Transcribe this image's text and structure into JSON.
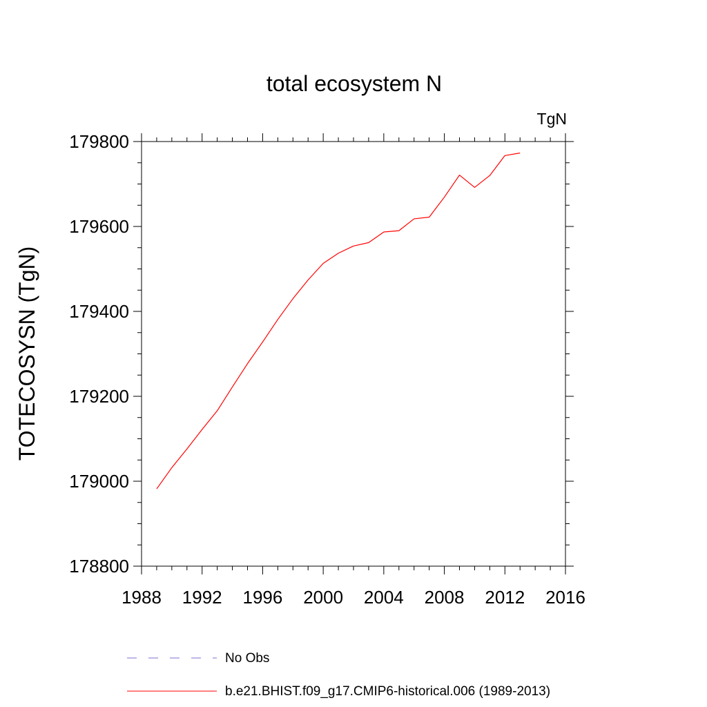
{
  "chart_data": {
    "type": "line",
    "title": "total ecosystem N",
    "units_label": "TgN",
    "xlabel": "",
    "ylabel": "TOTECOSYSN  (TgN)",
    "xlim": [
      1988,
      2016
    ],
    "ylim": [
      178800,
      179800
    ],
    "x_ticks": [
      1988,
      1992,
      1996,
      2000,
      2004,
      2008,
      2012,
      2016
    ],
    "y_ticks": [
      178800,
      179000,
      179200,
      179400,
      179600,
      179800
    ],
    "x_tick_labels": [
      "1988",
      "1992",
      "1996",
      "2000",
      "2004",
      "2008",
      "2012",
      "2016"
    ],
    "y_tick_labels": [
      "178800",
      "179000",
      "179200",
      "179400",
      "179600",
      "179800"
    ],
    "series": [
      {
        "name": "b.e21.BHIST.f09_g17.CMIP6-historical.006 (1989-2013)",
        "color": "#ff0000",
        "style": "solid",
        "x": [
          1989,
          1990,
          1991,
          1992,
          1993,
          1994,
          1995,
          1996,
          1997,
          1998,
          1999,
          2000,
          2001,
          2002,
          2003,
          2004,
          2005,
          2006,
          2007,
          2008,
          2009,
          2010,
          2011,
          2012,
          2013
        ],
        "y": [
          178982,
          179032,
          179076,
          179122,
          179166,
          179222,
          179277,
          179328,
          179381,
          179430,
          179474,
          179513,
          179537,
          179554,
          179562,
          179587,
          179590,
          179618,
          179622,
          179669,
          179721,
          179692,
          179720,
          179767,
          179773
        ]
      }
    ],
    "legend": [
      {
        "label": "No Obs",
        "color": "#7b6fd0",
        "style": "dashed"
      },
      {
        "label": "b.e21.BHIST.f09_g17.CMIP6-historical.006 (1989-2013)",
        "color": "#ff0000",
        "style": "solid"
      }
    ],
    "legend_position": "bottom"
  }
}
